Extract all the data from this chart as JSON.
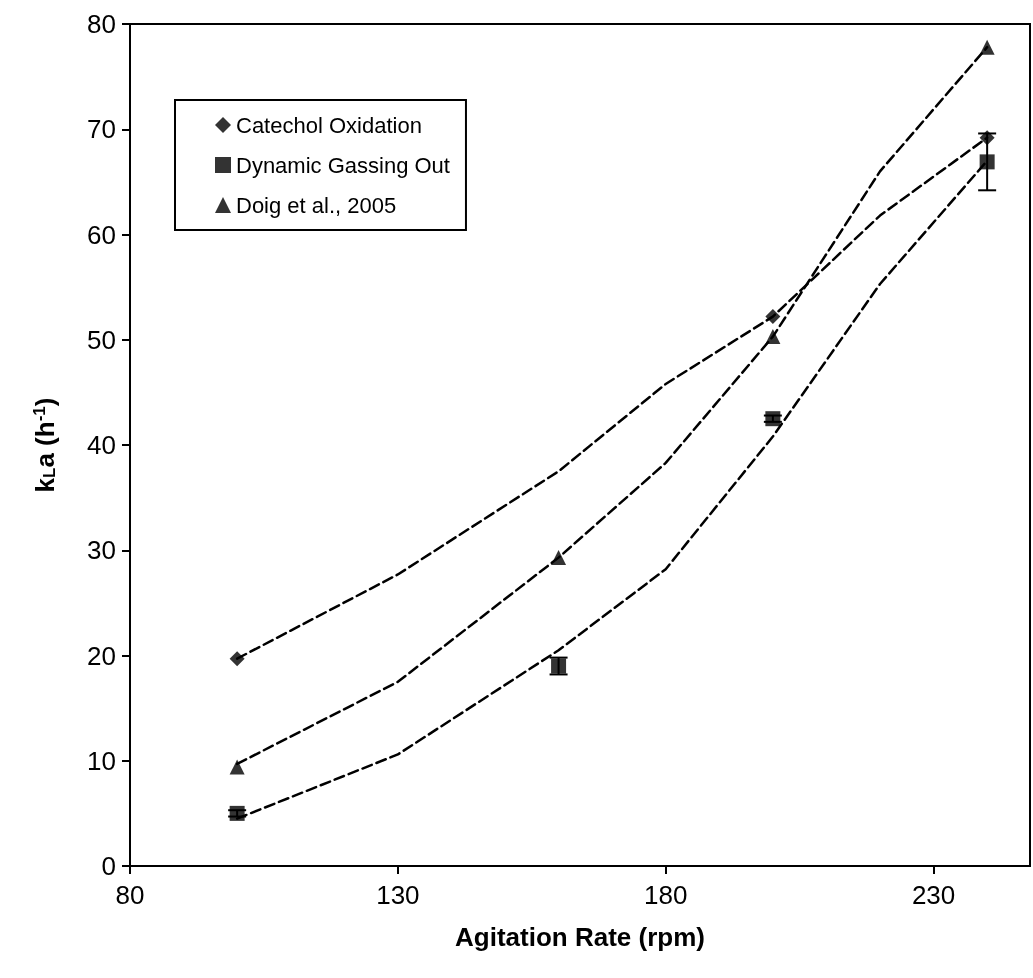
{
  "chart_data": {
    "type": "scatter",
    "xlabel": "Agitation Rate (rpm)",
    "ylabel": "k$_{L}$a (h$^{-1}$)",
    "xlim": [
      80,
      248
    ],
    "xticks": [
      80,
      130,
      180,
      230
    ],
    "ylim": [
      0,
      80
    ],
    "yticks": [
      0,
      10,
      20,
      30,
      40,
      50,
      60,
      70,
      80
    ],
    "grid": false,
    "legend": "top left",
    "x": [
      100,
      160,
      200,
      240
    ],
    "series": [
      {
        "name": "Catechol Oxidation",
        "color": "#000000",
        "marker": "diamond",
        "values": [
          19.7,
          null,
          52.2,
          69.2
        ]
      },
      {
        "name": "Dynamic Gassing Out",
        "color": "#000000",
        "marker": "square",
        "values": [
          5.0,
          19.0,
          42.5,
          66.9
        ],
        "errors": [
          0.3,
          0.8,
          0.3,
          2.7
        ]
      },
      {
        "name": "Doig et al., 2005",
        "color": "#000000",
        "marker": "triangle",
        "values": [
          9.4,
          29.3,
          50.3,
          77.8
        ]
      },
      {
        "type": "line",
        "color": "#000000",
        "marker": "none",
        "line_style": "dashed",
        "x": [
          100,
          130,
          160,
          180,
          200,
          220,
          240
        ],
        "values": [
          19.7,
          27.7,
          37.5,
          45.8,
          52.2,
          61.8,
          69.2
        ]
      },
      {
        "type": "line",
        "color": "#000000",
        "marker": "none",
        "line_style": "dashed",
        "x": [
          100,
          130,
          160,
          180,
          200,
          220,
          240
        ],
        "values": [
          4.5,
          10.6,
          20.5,
          28.2,
          40.8,
          55.3,
          67.0
        ]
      },
      {
        "type": "line",
        "color": "#000000",
        "marker": "none",
        "line_style": "dashed",
        "x": [
          100,
          130,
          160,
          180,
          200,
          220,
          240
        ],
        "values": [
          9.7,
          17.5,
          29.3,
          38.3,
          50.3,
          66.0,
          77.8
        ]
      }
    ]
  }
}
